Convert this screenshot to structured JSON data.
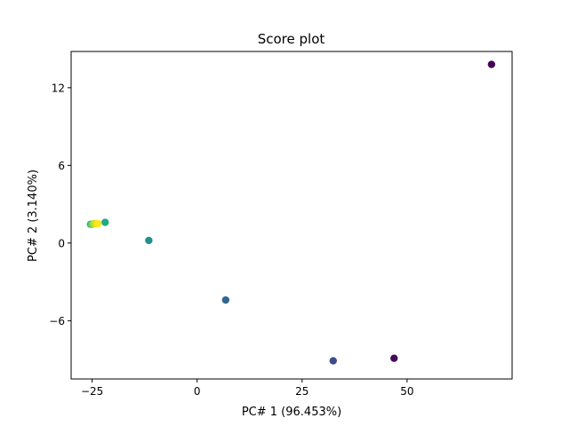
{
  "chart_data": {
    "type": "scatter",
    "title": "Score plot",
    "xlabel": "PC# 1 (96.453%)",
    "ylabel": "PC# 2 (3.140%)",
    "xlim": [
      -30,
      75
    ],
    "ylim": [
      -10.5,
      14.8
    ],
    "xticks": [
      -25,
      0,
      25,
      50
    ],
    "yticks": [
      -6,
      0,
      6,
      12
    ],
    "xtick_labels": [
      "−25",
      "0",
      "25",
      "50"
    ],
    "ytick_labels": [
      "−6",
      "0",
      "6",
      "12"
    ],
    "grid": false,
    "legend": "none",
    "colormap": "viridis",
    "points": [
      {
        "x": 70.1,
        "y": 13.8,
        "color": "#440154"
      },
      {
        "x": 46.9,
        "y": -8.9,
        "color": "#46085c"
      },
      {
        "x": 32.4,
        "y": -9.1,
        "color": "#3e4a89"
      },
      {
        "x": 6.8,
        "y": -4.4,
        "color": "#31688e"
      },
      {
        "x": -11.5,
        "y": 0.2,
        "color": "#21918c"
      },
      {
        "x": -21.9,
        "y": 1.6,
        "color": "#22a884"
      },
      {
        "x": -25.4,
        "y": 1.45,
        "color": "#35b779"
      },
      {
        "x": -25.0,
        "y": 1.45,
        "color": "#7ad151"
      },
      {
        "x": -24.5,
        "y": 1.5,
        "color": "#bddf26"
      },
      {
        "x": -24.0,
        "y": 1.5,
        "color": "#dde318"
      },
      {
        "x": -23.6,
        "y": 1.5,
        "color": "#fde725"
      }
    ]
  }
}
